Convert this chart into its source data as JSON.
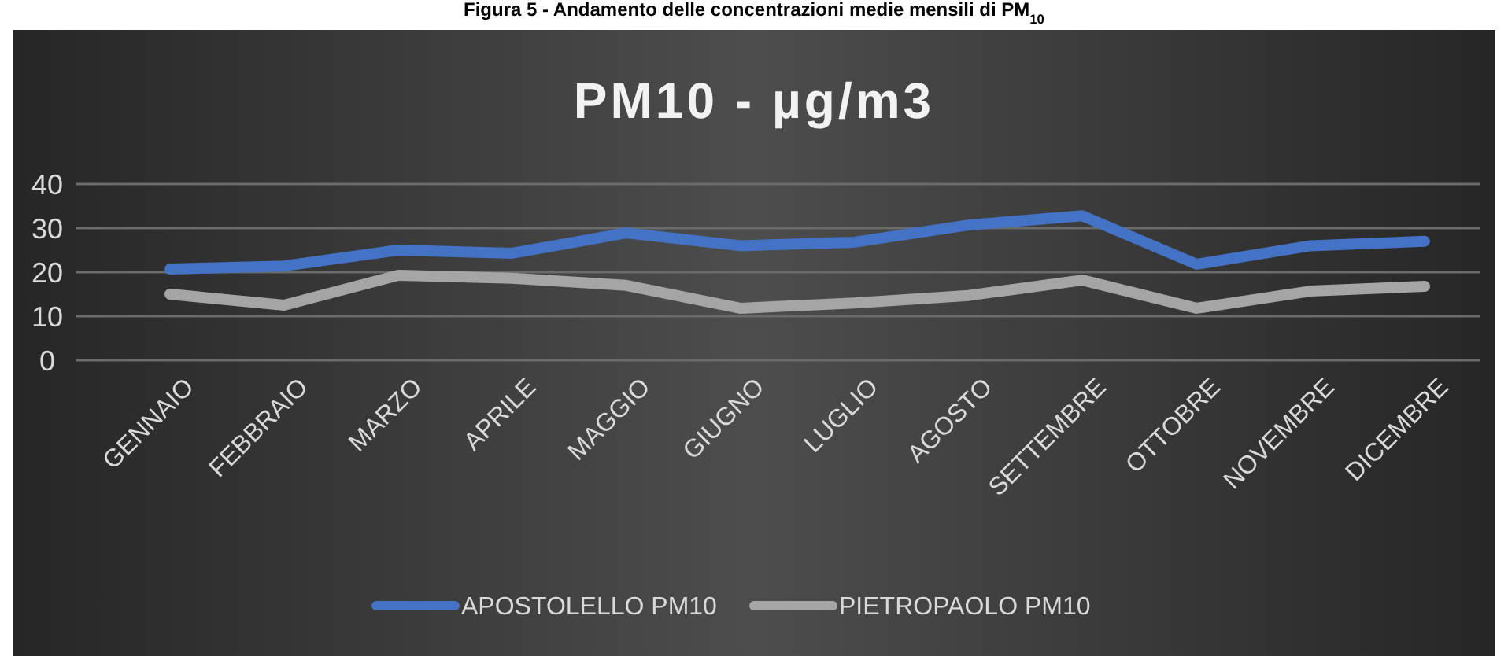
{
  "chart_data": {
    "type": "line",
    "title": "PM10 - µg/m3",
    "annotations": [
      "Figura 5 - Andamento delle concentrazioni medie mensili di PM$_{10}$"
    ],
    "categories": [
      "GENNAIO",
      "FEBBRAIO",
      "MARZO",
      "APRILE",
      "MAGGIO",
      "GIUGNO",
      "LUGLIO",
      "AGOSTO",
      "SETTEMBRE",
      "OTTOBRE",
      "NOVEMBRE",
      "DICEMBRE"
    ],
    "series": [
      {
        "name": "APOSTOLELLO PM10",
        "color": "#4472c4",
        "values": [
          20.7,
          21.4,
          25,
          24.3,
          28.9,
          26,
          26.8,
          30.7,
          32.8,
          21.8,
          26,
          27
        ]
      },
      {
        "name": "PIETROPAOLO PM10",
        "color": "#a5a5a5",
        "values": [
          15,
          12.5,
          19.3,
          18.6,
          17,
          11.8,
          13,
          14.7,
          18.2,
          11.8,
          15.7,
          16.8
        ]
      }
    ],
    "ylim": [
      0,
      40
    ],
    "yticks": [
      0,
      10,
      20,
      30,
      40
    ],
    "grid": "y",
    "legend": "bottom",
    "marker": "none",
    "line_style": "solid"
  }
}
